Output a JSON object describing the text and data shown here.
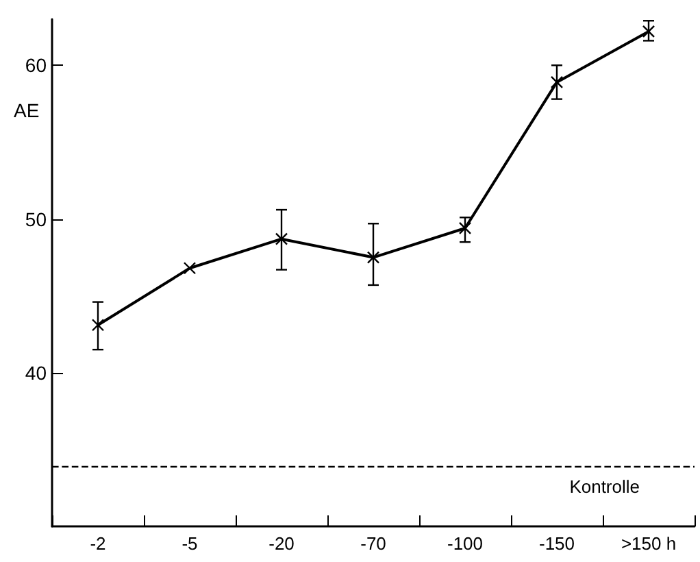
{
  "chart_data": {
    "type": "line",
    "ylabel": "AE",
    "categories": [
      "-2",
      "-5",
      "-20",
      "-70",
      "-100",
      "-150",
      ">150 h"
    ],
    "series": [
      {
        "color": "#000000",
        "values": [
          43.1,
          46.8,
          48.7,
          47.5,
          49.4,
          58.9,
          62.2
        ],
        "errors": [
          [
            41.5,
            44.6
          ],
          null,
          [
            46.7,
            50.6
          ],
          [
            45.7,
            49.7
          ],
          [
            48.5,
            50.1
          ],
          [
            57.8,
            60.0
          ],
          [
            61.6,
            62.9
          ]
        ]
      }
    ],
    "ylim": [
      30,
      63
    ],
    "yticks": [
      40,
      50,
      60
    ],
    "ref_lines": [
      {
        "axis": "y",
        "value": 33.9,
        "label": "Kontrolle",
        "color": "#000000",
        "line_style": "dashed"
      }
    ],
    "marker": "cross",
    "line_style": "solid"
  }
}
